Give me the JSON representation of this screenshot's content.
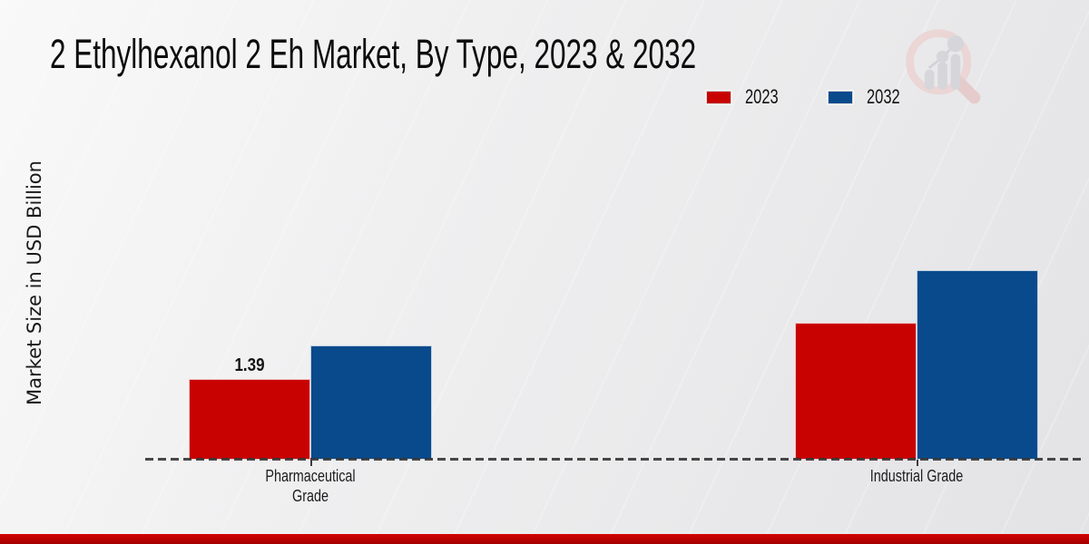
{
  "chart": {
    "title": "2 Ethylhexanol 2 Eh Market, By Type, 2023 & 2032",
    "ylabel": "Market Size in USD Billion"
  },
  "legend": {
    "items": [
      {
        "label": "2023",
        "color": "#c80101"
      },
      {
        "label": "2032",
        "color": "#094a8c"
      }
    ]
  },
  "chart_data": {
    "type": "bar",
    "title": "2 Ethylhexanol 2 Eh Market, By Type, 2023 & 2032",
    "xlabel": "",
    "ylabel": "Market Size in USD Billion",
    "categories": [
      "Pharmaceutical Grade",
      "Industrial Grade"
    ],
    "series": [
      {
        "name": "2023",
        "color": "#c80101",
        "values": [
          1.39,
          2.36
        ]
      },
      {
        "name": "2032",
        "color": "#094a8c",
        "values": [
          1.97,
          3.27
        ]
      }
    ],
    "data_labels": [
      {
        "series_index": 0,
        "category_index": 0,
        "text": "1.39"
      }
    ],
    "ylim": [
      0,
      3.9
    ],
    "grid": false,
    "legend_position": "top-right",
    "baseline_style": "dashed"
  },
  "branding": {
    "logo_icon": "magnifier-bar-chart-watermark",
    "footer_bar_color": "#bf0000"
  }
}
